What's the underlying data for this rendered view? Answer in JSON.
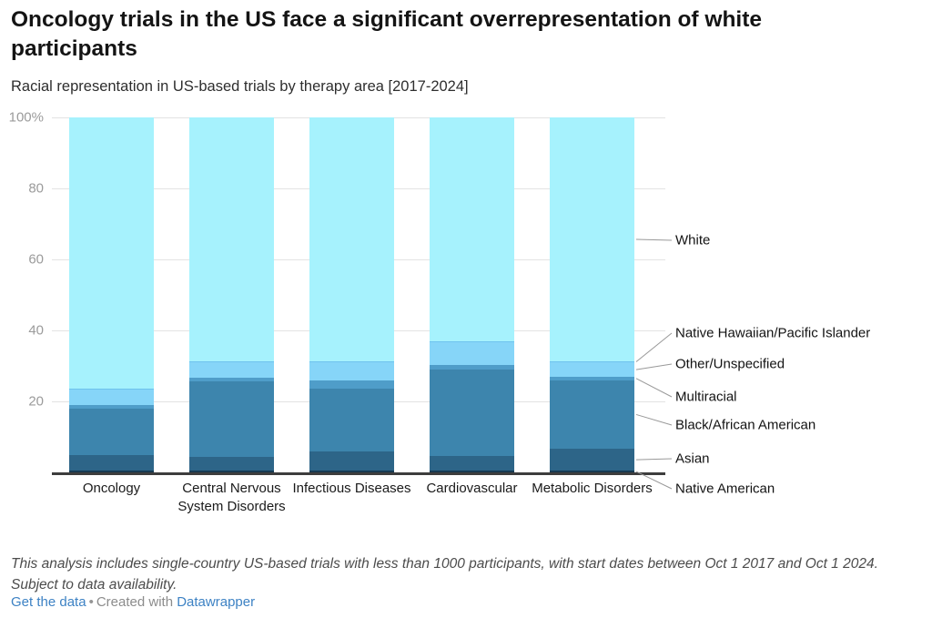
{
  "header": {
    "title": "Oncology trials in the US face a significant overrepresentation of white participants",
    "subtitle": "Racial representation in US-based trials by therapy area [2017-2024]"
  },
  "chart_data": {
    "type": "bar",
    "stacked": true,
    "orientation": "vertical",
    "unit": "%",
    "title": "Racial representation in US-based trials by therapy area [2017-2024]",
    "categories": [
      "Oncology",
      "Central Nervous System Disorders",
      "Infectious Diseases",
      "Cardiovascular",
      "Metabolic Disorders"
    ],
    "series": [
      {
        "name": "Native American",
        "color": "#173a52",
        "values": [
          0.4,
          0.4,
          0.5,
          0.4,
          0.5
        ]
      },
      {
        "name": "Asian",
        "color": "#2d6588",
        "values": [
          4.4,
          4.0,
          5.5,
          4.3,
          6.1
        ]
      },
      {
        "name": "Black/African American",
        "color": "#3d85ad",
        "values": [
          13.2,
          21.2,
          17.6,
          24.2,
          19.4
        ]
      },
      {
        "name": "Multiracial",
        "color": "#4f9dc9",
        "values": [
          0.9,
          1.0,
          2.2,
          1.3,
          0.9
        ]
      },
      {
        "name": "Other/Unspecified",
        "color": "#86d5f8",
        "values": [
          4.4,
          4.5,
          5.2,
          6.4,
          4.1
        ]
      },
      {
        "name": "Native Hawaiian/Pacific Islander",
        "color": "#6fc3ee",
        "values": [
          0.3,
          0.3,
          0.3,
          0.3,
          0.3
        ]
      },
      {
        "name": "White",
        "color": "#a6f2fd",
        "values": [
          76.4,
          68.6,
          68.7,
          63.1,
          68.7
        ]
      }
    ],
    "ylim": [
      0,
      100
    ],
    "yticks": [
      {
        "value": 100,
        "label": "100%"
      },
      {
        "value": 80,
        "label": "80"
      },
      {
        "value": 60,
        "label": "60"
      },
      {
        "value": 40,
        "label": "40"
      },
      {
        "value": 20,
        "label": "20"
      }
    ],
    "grid": "horizontal",
    "legend_position": "right, leader lines to last bar",
    "legend_order_top_to_bottom": [
      "White",
      "Native Hawaiian/Pacific Islander",
      "Other/Unspecified",
      "Multiracial",
      "Black/African American",
      "Asian",
      "Native American"
    ]
  },
  "footer": {
    "note": "This analysis includes single-country US-based trials with less than 1000 participants, with start dates between Oct 1 2017 and Oct 1 2024. Subject to data availability.",
    "get_data_label": "Get the data",
    "separator": "•",
    "created_with_label": "Created with",
    "datawrapper_label": "Datawrapper"
  },
  "colors": {
    "link_blue": "#3d82c4",
    "axis": "#3d3d3d",
    "gridline": "#e3e3e3",
    "tick_label": "#9b9b9b",
    "leader_line": "#999999"
  }
}
